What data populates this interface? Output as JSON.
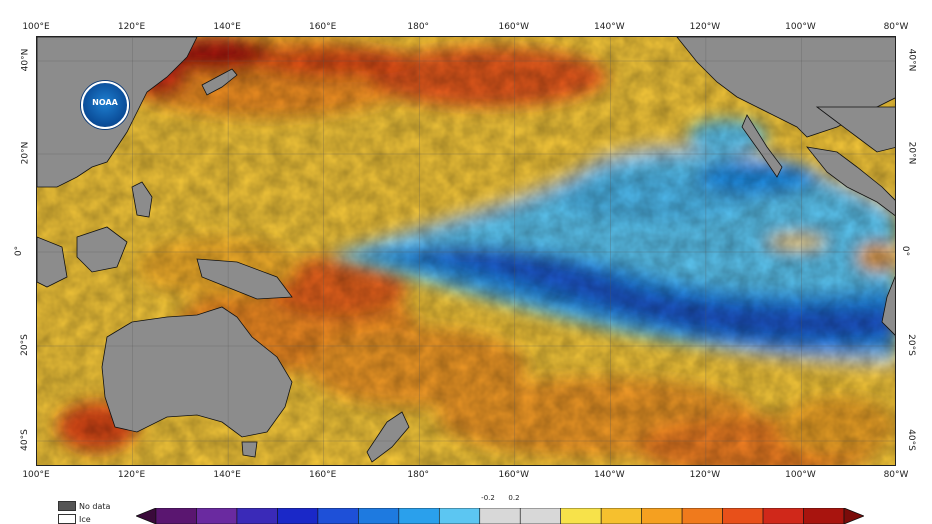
{
  "map": {
    "top_ticks": [
      "100°E",
      "120°E",
      "140°E",
      "160°E",
      "180°",
      "160°W",
      "140°W",
      "120°W",
      "100°W",
      "80°W"
    ],
    "bottom_ticks": [
      "100°E",
      "120°E",
      "140°E",
      "160°E",
      "180°",
      "160°W",
      "140°W",
      "120°W",
      "100°W",
      "80°W"
    ],
    "left_ticks": [
      "40°N",
      "20°N",
      "0°",
      "20°S",
      "40°S"
    ],
    "right_ticks": [
      "40°N",
      "20°N",
      "0°",
      "20°S",
      "40°S"
    ],
    "colors": {
      "land": "#8c8c8c",
      "neutral": "#d8d8d8",
      "warm_light": "#f7d53a",
      "warm_mid": "#f6a623",
      "warm_strong": "#e85a1c",
      "warm_extreme": "#a8180e",
      "cool_light": "#4db8ec",
      "cool_mid": "#1e8fe8",
      "cool_strong": "#1e55c8"
    }
  },
  "logo": {
    "text": "NOAA",
    "icon": "noaa-seal-icon"
  },
  "legend": {
    "no_data": {
      "label": "No data",
      "color": "#555555"
    },
    "ice": {
      "label": "Ice",
      "color": "#ffffff"
    }
  },
  "colorbar": {
    "labels": [
      "-0.2",
      "0.2"
    ],
    "segments": [
      "#3a0a3a",
      "#5a1670",
      "#6a2aa0",
      "#3a2ab8",
      "#1a28c8",
      "#1e50d8",
      "#1e7ae0",
      "#2aa0ec",
      "#5cc6f2",
      "#d8d8d8",
      "#d8d8d8",
      "#f7e24a",
      "#f6c02e",
      "#f5a020",
      "#f07a1c",
      "#e8501a",
      "#d0281a",
      "#a8140e",
      "#7a0c0a"
    ]
  }
}
